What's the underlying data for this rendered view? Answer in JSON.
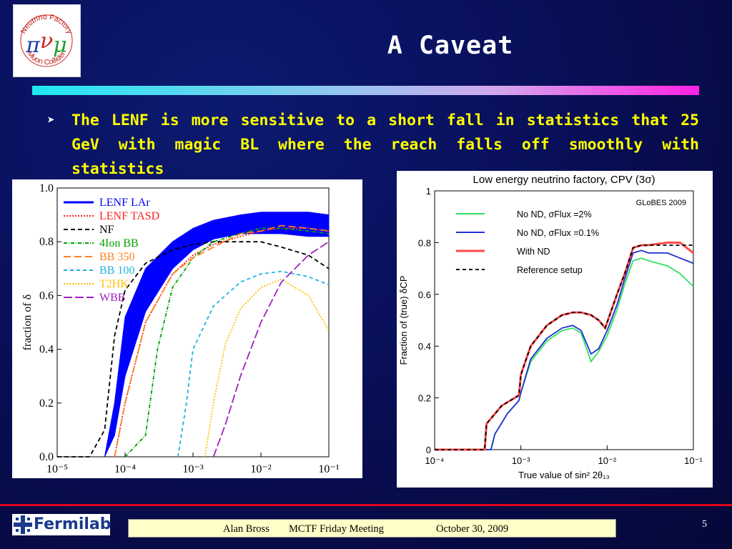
{
  "slide": {
    "title": "A Caveat",
    "bullet_text": "The LENF is more sensitive to a short fall in statistics that 25 GeV with magic BL where the reach falls off smoothly with statistics",
    "page_number": "5"
  },
  "logo": {
    "ring_top": "Neutrino Factory",
    "ring_bottom": "Muon Collider",
    "symbols": "π ν μ"
  },
  "footer": {
    "author": "Alan Bross",
    "meeting": "MCTF Friday Meeting",
    "date": "October 30, 2009",
    "lab_name": "Fermilab"
  },
  "colors": {
    "background": "#0a1160",
    "title_text": "#ffffff",
    "bullet_text": "#ffff00",
    "footer_line": "#e0001a",
    "footer_box": "#ffffc8"
  },
  "chart_data": [
    {
      "type": "line",
      "xscale": "log",
      "xlim": [
        1e-05,
        0.1
      ],
      "ylim": [
        0.0,
        1.0
      ],
      "xlabel": "",
      "ylabel": "fraction of δ",
      "x_ticks": [
        "10⁻⁵",
        "10⁻⁴",
        "10⁻³",
        "10⁻²",
        "10⁻¹"
      ],
      "y_ticks": [
        "0.0",
        "0.2",
        "0.4",
        "0.6",
        "0.8",
        "1.0"
      ],
      "legend_position": "top-left",
      "band": {
        "name": "LENF LAr",
        "color": "#0000ff",
        "x": [
          5e-05,
          7e-05,
          0.0001,
          0.0002,
          0.0005,
          0.001,
          0.002,
          0.005,
          0.01,
          0.02,
          0.05,
          0.1
        ],
        "lower": [
          0.0,
          0.08,
          0.3,
          0.54,
          0.7,
          0.77,
          0.81,
          0.83,
          0.83,
          0.83,
          0.82,
          0.82
        ],
        "upper": [
          0.0,
          0.2,
          0.52,
          0.7,
          0.8,
          0.85,
          0.88,
          0.9,
          0.91,
          0.91,
          0.91,
          0.9
        ]
      },
      "series": [
        {
          "name": "LENF TASD",
          "color": "#ff2020",
          "dash": "2,2",
          "x": [
            7e-05,
            0.0001,
            0.0002,
            0.0005,
            0.001,
            0.002,
            0.005,
            0.01,
            0.02,
            0.05,
            0.1
          ],
          "y": [
            0.0,
            0.2,
            0.5,
            0.68,
            0.75,
            0.79,
            0.82,
            0.84,
            0.85,
            0.85,
            0.84
          ]
        },
        {
          "name": "NF",
          "color": "#000000",
          "dash": "6,4",
          "x": [
            1e-05,
            3e-05,
            5e-05,
            7e-05,
            0.0001,
            0.0002,
            0.0005,
            0.001,
            0.002,
            0.005,
            0.01,
            0.02,
            0.05,
            0.1
          ],
          "y": [
            0.0,
            0.0,
            0.1,
            0.45,
            0.62,
            0.72,
            0.77,
            0.79,
            0.8,
            0.8,
            0.8,
            0.78,
            0.75,
            0.7
          ]
        },
        {
          "name": "4Ion BB",
          "color": "#00a000",
          "dash": "5,2,1,2",
          "x": [
            0.0001,
            0.0002,
            0.0003,
            0.0005,
            0.001,
            0.002,
            0.005,
            0.01,
            0.02,
            0.05,
            0.1
          ],
          "y": [
            0.0,
            0.08,
            0.4,
            0.63,
            0.74,
            0.8,
            0.83,
            0.85,
            0.85,
            0.84,
            0.83
          ]
        },
        {
          "name": "BB 350",
          "color": "#ff8020",
          "dash": "10,5",
          "x": [
            7e-05,
            0.0001,
            0.0002,
            0.0005,
            0.001,
            0.002,
            0.005,
            0.01,
            0.02,
            0.05,
            0.1
          ],
          "y": [
            0.0,
            0.2,
            0.5,
            0.68,
            0.74,
            0.78,
            0.83,
            0.84,
            0.86,
            0.85,
            0.84
          ]
        },
        {
          "name": "BB 100",
          "color": "#20b0e0",
          "dash": "5,4",
          "x": [
            0.0006,
            0.0008,
            0.001,
            0.002,
            0.005,
            0.01,
            0.02,
            0.05,
            0.1
          ],
          "y": [
            0.0,
            0.2,
            0.4,
            0.56,
            0.65,
            0.68,
            0.69,
            0.67,
            0.64
          ]
        },
        {
          "name": "T2HK",
          "color": "#ffc000",
          "dash": "2,2",
          "x": [
            0.0015,
            0.002,
            0.003,
            0.005,
            0.01,
            0.02,
            0.05,
            0.1
          ],
          "y": [
            0.0,
            0.2,
            0.42,
            0.55,
            0.63,
            0.66,
            0.6,
            0.47
          ]
        },
        {
          "name": "WBB",
          "color": "#a020c0",
          "dash": "12,4",
          "x": [
            0.002,
            0.003,
            0.005,
            0.01,
            0.02,
            0.05,
            0.1
          ],
          "y": [
            0.0,
            0.12,
            0.3,
            0.5,
            0.65,
            0.75,
            0.8
          ]
        }
      ]
    },
    {
      "type": "line",
      "xscale": "log",
      "xlim": [
        0.0001,
        0.1
      ],
      "ylim": [
        0.0,
        1.0
      ],
      "title": "Low energy neutrino factory, CPV (3σ)",
      "xlabel": "True value of sin² 2θ₁₃",
      "ylabel": "Fraction of (true) δCP",
      "x_ticks": [
        "10⁻⁴",
        "10⁻³",
        "10⁻²",
        "10⁻¹"
      ],
      "y_ticks": [
        "0",
        "0.2",
        "0.4",
        "0.6",
        "0.8",
        "1"
      ],
      "annotation": "GLoBES 2009",
      "legend_position": "top-left",
      "legend_labels": [
        "No ND, σFlux =2%",
        "No ND, σFlux =0.1%",
        "With ND",
        "Reference setup"
      ],
      "series": [
        {
          "name": "No ND, σFlux =2%",
          "color": "#30e060",
          "dash": "",
          "x": [
            0.0001,
            0.00045,
            0.0005,
            0.0007,
            0.00095,
            0.001,
            0.0013,
            0.002,
            0.003,
            0.004,
            0.005,
            0.0065,
            0.008,
            0.01,
            0.013,
            0.016,
            0.02,
            0.025,
            0.03,
            0.05,
            0.07,
            0.1
          ],
          "y": [
            0.0,
            0.0,
            0.06,
            0.14,
            0.19,
            0.22,
            0.34,
            0.42,
            0.46,
            0.47,
            0.45,
            0.34,
            0.38,
            0.44,
            0.54,
            0.64,
            0.73,
            0.74,
            0.73,
            0.71,
            0.68,
            0.63
          ]
        },
        {
          "name": "No ND, σFlux =0.1%",
          "color": "#2030d0",
          "dash": "",
          "x": [
            0.0001,
            0.00045,
            0.0005,
            0.0007,
            0.00095,
            0.001,
            0.0013,
            0.002,
            0.003,
            0.004,
            0.005,
            0.0065,
            0.008,
            0.01,
            0.013,
            0.016,
            0.02,
            0.025,
            0.03,
            0.05,
            0.07,
            0.1
          ],
          "y": [
            0.0,
            0.0,
            0.06,
            0.14,
            0.19,
            0.22,
            0.35,
            0.43,
            0.47,
            0.48,
            0.46,
            0.37,
            0.39,
            0.46,
            0.56,
            0.66,
            0.76,
            0.77,
            0.76,
            0.76,
            0.74,
            0.72
          ]
        },
        {
          "name": "With ND",
          "color": "#ff4a4a",
          "dash": "",
          "width": 3,
          "x": [
            0.0001,
            0.00038,
            0.0004,
            0.0006,
            0.00095,
            0.001,
            0.0013,
            0.002,
            0.003,
            0.004,
            0.005,
            0.0065,
            0.008,
            0.0095,
            0.013,
            0.016,
            0.02,
            0.025,
            0.03,
            0.05,
            0.07,
            0.1
          ],
          "y": [
            0.0,
            0.0,
            0.1,
            0.17,
            0.21,
            0.29,
            0.4,
            0.48,
            0.52,
            0.53,
            0.53,
            0.52,
            0.5,
            0.47,
            0.6,
            0.68,
            0.78,
            0.79,
            0.79,
            0.8,
            0.8,
            0.76
          ]
        },
        {
          "name": "Reference setup",
          "color": "#000000",
          "dash": "5,4",
          "x": [
            0.0001,
            0.00038,
            0.0004,
            0.0006,
            0.00095,
            0.001,
            0.0013,
            0.002,
            0.003,
            0.004,
            0.005,
            0.0065,
            0.008,
            0.0095,
            0.013,
            0.016,
            0.02,
            0.025,
            0.03,
            0.05,
            0.07,
            0.1
          ],
          "y": [
            0.0,
            0.0,
            0.1,
            0.17,
            0.21,
            0.29,
            0.4,
            0.48,
            0.52,
            0.53,
            0.53,
            0.52,
            0.5,
            0.47,
            0.6,
            0.68,
            0.78,
            0.79,
            0.79,
            0.79,
            0.79,
            0.79
          ]
        }
      ]
    }
  ]
}
